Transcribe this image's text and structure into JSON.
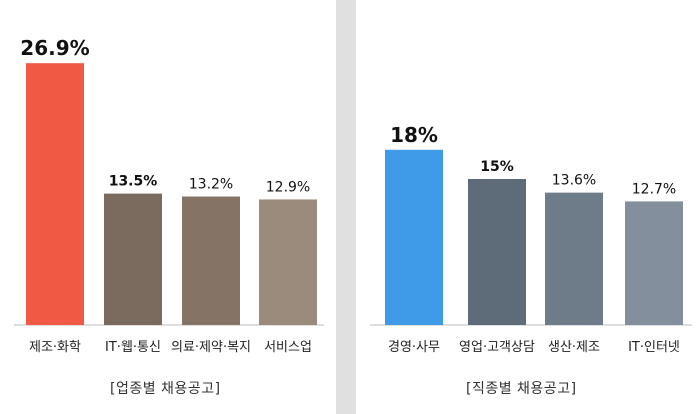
{
  "chart_data": [
    {
      "type": "bar",
      "caption": "[업종별 채용공고]",
      "categories": [
        "제조·화학",
        "IT·웹·통신",
        "의료·제약·복지",
        "서비스업"
      ],
      "values": [
        26.9,
        13.5,
        13.2,
        12.9
      ],
      "value_labels": [
        "26.9%",
        "13.5%",
        "13.2%",
        "12.9%"
      ],
      "colors": [
        "#f05a45",
        "#7a6b5e",
        "#857466",
        "#9b8b7c"
      ],
      "ylim": [
        0,
        30
      ],
      "grid": false,
      "legend": "none"
    },
    {
      "type": "bar",
      "caption": "[직종별 채용공고]",
      "categories": [
        "경영·사무",
        "영업·고객상담",
        "생산·제조",
        "IT·인터넷"
      ],
      "values": [
        18,
        15,
        13.6,
        12.7
      ],
      "value_labels": [
        "18%",
        "15%",
        "13.6%",
        "12.7%"
      ],
      "colors": [
        "#3f9ae8",
        "#5e6b79",
        "#6e7c8a",
        "#838f9c"
      ],
      "ylim": [
        0,
        30
      ],
      "grid": false,
      "legend": "none"
    }
  ]
}
